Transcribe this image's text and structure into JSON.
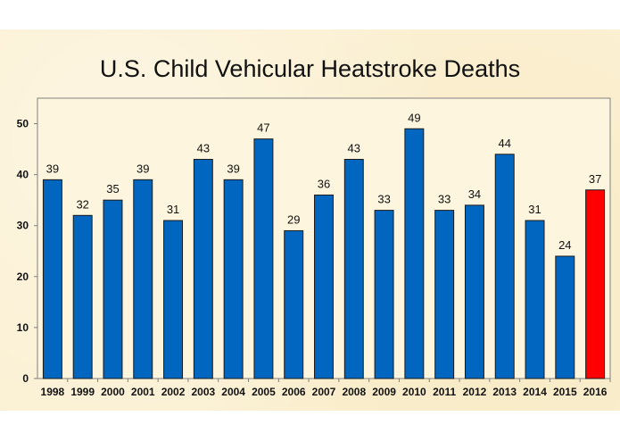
{
  "chart_data": {
    "type": "bar",
    "title": "U.S. Child Vehicular Heatstroke Deaths",
    "xlabel": "",
    "ylabel": "",
    "ylim": [
      0,
      55
    ],
    "yticks": [
      0,
      10,
      20,
      30,
      40,
      50
    ],
    "categories": [
      "1998",
      "1999",
      "2000",
      "2001",
      "2002",
      "2003",
      "2004",
      "2005",
      "2006",
      "2007",
      "2008",
      "2009",
      "2010",
      "2011",
      "2012",
      "2013",
      "2014",
      "2015",
      "2016"
    ],
    "values": [
      39,
      32,
      35,
      39,
      31,
      43,
      39,
      47,
      29,
      36,
      43,
      33,
      49,
      33,
      34,
      44,
      31,
      24,
      37
    ],
    "colors": {
      "default": "#0066bf",
      "highlight": "#ff0000",
      "highlight_category": "2016"
    },
    "grid": false,
    "legend": "none"
  }
}
